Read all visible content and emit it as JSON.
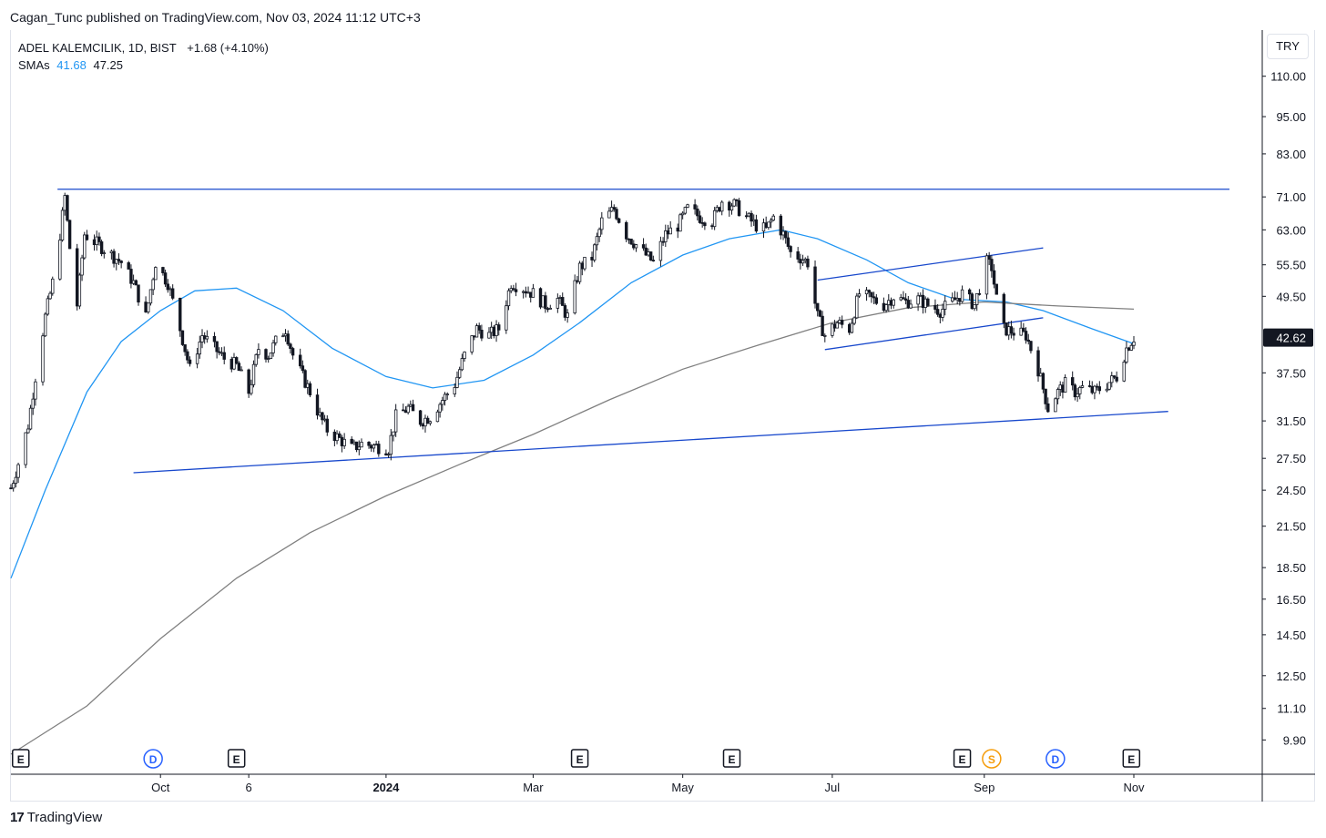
{
  "publish_line": "Cagan_Tunc published on TradingView.com, Nov 03, 2024 11:12 UTC+3",
  "legend": {
    "symbol": "ADEL KALEMCILIK, 1D, BIST",
    "change": "+1.68 (+4.10%)",
    "sma_label": "SMAs",
    "sma_fast": "41.68",
    "sma_slow": "47.25"
  },
  "currency": "TRY",
  "brand": {
    "logo": "17",
    "name": "TradingView"
  },
  "colors": {
    "sma_fast": "#2196f3",
    "sma_slow": "#808080",
    "trendline": "#1848cc",
    "candle": "#131722",
    "event_E": "#131722",
    "event_D": "#2962ff",
    "event_S": "#f59d0c"
  },
  "chart_data": {
    "type": "candlestick",
    "title": "ADEL KALEMCILIK, 1D, BIST",
    "y_scale": "log",
    "ylim": [
      8.8,
      125
    ],
    "last_price": "42.62",
    "y_ticks": [
      "110.00",
      "95.00",
      "83.00",
      "71.00",
      "63.00",
      "55.50",
      "49.50",
      "42.62",
      "37.50",
      "31.50",
      "27.50",
      "24.50",
      "21.50",
      "18.50",
      "16.50",
      "14.50",
      "12.50",
      "11.10",
      "9.90"
    ],
    "x_ticks": [
      {
        "label": "Oct",
        "date": "2023-10-01"
      },
      {
        "label": "6",
        "date": "2023-11-06"
      },
      {
        "label": "2024",
        "date": "2024-01-01"
      },
      {
        "label": "Mar",
        "date": "2024-03-01"
      },
      {
        "label": "May",
        "date": "2024-05-01"
      },
      {
        "label": "Jul",
        "date": "2024-07-01"
      },
      {
        "label": "Sep",
        "date": "2024-09-01"
      },
      {
        "label": "Nov",
        "date": "2024-11-01"
      }
    ],
    "price_path": [
      [
        "2023-08-01",
        24.7
      ],
      [
        "2023-08-04",
        27.0
      ],
      [
        "2023-08-08",
        31.0
      ],
      [
        "2023-08-11",
        37.0
      ],
      [
        "2023-08-15",
        46.0
      ],
      [
        "2023-08-18",
        52.0
      ],
      [
        "2023-08-21",
        62.0
      ],
      [
        "2023-08-23",
        71.0
      ],
      [
        "2023-08-25",
        59.0
      ],
      [
        "2023-08-28",
        48.0
      ],
      [
        "2023-08-31",
        62.0
      ],
      [
        "2023-09-05",
        60.0
      ],
      [
        "2023-09-10",
        58.0
      ],
      [
        "2023-09-15",
        56.0
      ],
      [
        "2023-09-20",
        52.0
      ],
      [
        "2023-09-25",
        46.0
      ],
      [
        "2023-09-29",
        56.0
      ],
      [
        "2023-10-04",
        52.0
      ],
      [
        "2023-10-09",
        44.0
      ],
      [
        "2023-10-13",
        38.0
      ],
      [
        "2023-10-18",
        43.0
      ],
      [
        "2023-10-23",
        41.0
      ],
      [
        "2023-10-27",
        39.5
      ],
      [
        "2023-11-01",
        38.5
      ],
      [
        "2023-11-06",
        35.0
      ],
      [
        "2023-11-10",
        41.0
      ],
      [
        "2023-11-14",
        40.0
      ],
      [
        "2023-11-17",
        42.0
      ],
      [
        "2023-11-21",
        44.0
      ],
      [
        "2023-11-24",
        40.0
      ],
      [
        "2023-11-28",
        37.0
      ],
      [
        "2023-12-01",
        35.0
      ],
      [
        "2023-12-05",
        32.0
      ],
      [
        "2023-12-08",
        30.5
      ],
      [
        "2023-12-13",
        29.5
      ],
      [
        "2023-12-18",
        28.5
      ],
      [
        "2023-12-22",
        29.0
      ],
      [
        "2024-01-02",
        28.5
      ],
      [
        "2024-01-05",
        32.0
      ],
      [
        "2024-01-10",
        33.0
      ],
      [
        "2024-01-15",
        31.5
      ],
      [
        "2024-01-19",
        32.0
      ],
      [
        "2024-01-24",
        34.0
      ],
      [
        "2024-01-29",
        36.0
      ],
      [
        "2024-02-02",
        40.0
      ],
      [
        "2024-02-07",
        44.0
      ],
      [
        "2024-02-12",
        43.0
      ],
      [
        "2024-02-16",
        44.0
      ],
      [
        "2024-02-21",
        52.0
      ],
      [
        "2024-02-26",
        51.0
      ],
      [
        "2024-03-01",
        50.0
      ],
      [
        "2024-03-06",
        48.0
      ],
      [
        "2024-03-11",
        49.0
      ],
      [
        "2024-03-15",
        46.0
      ],
      [
        "2024-03-20",
        55.0
      ],
      [
        "2024-03-25",
        57.0
      ],
      [
        "2024-03-29",
        65.0
      ],
      [
        "2024-04-03",
        68.0
      ],
      [
        "2024-04-08",
        62.0
      ],
      [
        "2024-04-15",
        58.0
      ],
      [
        "2024-04-19",
        56.0
      ],
      [
        "2024-04-24",
        62.0
      ],
      [
        "2024-04-29",
        64.0
      ],
      [
        "2024-05-03",
        68.0
      ],
      [
        "2024-05-08",
        66.0
      ],
      [
        "2024-05-13",
        65.0
      ],
      [
        "2024-05-17",
        70.0
      ],
      [
        "2024-05-22",
        69.0
      ],
      [
        "2024-05-27",
        66.0
      ],
      [
        "2024-05-31",
        64.0
      ],
      [
        "2024-06-04",
        63.0
      ],
      [
        "2024-06-07",
        66.0
      ],
      [
        "2024-06-11",
        62.0
      ],
      [
        "2024-06-14",
        58.0
      ],
      [
        "2024-06-18",
        57.0
      ],
      [
        "2024-06-21",
        56.0
      ],
      [
        "2024-06-25",
        46.0
      ],
      [
        "2024-06-28",
        43.0
      ],
      [
        "2024-07-03",
        45.0
      ],
      [
        "2024-07-08",
        44.0
      ],
      [
        "2024-07-12",
        50.0
      ],
      [
        "2024-07-17",
        49.0
      ],
      [
        "2024-07-22",
        48.0
      ],
      [
        "2024-07-26",
        49.5
      ],
      [
        "2024-07-31",
        48.5
      ],
      [
        "2024-08-05",
        49.0
      ],
      [
        "2024-08-09",
        48.0
      ],
      [
        "2024-08-14",
        47.0
      ],
      [
        "2024-08-19",
        48.5
      ],
      [
        "2024-08-23",
        50.0
      ],
      [
        "2024-08-28",
        48.0
      ],
      [
        "2024-09-02",
        56.0
      ],
      [
        "2024-09-04",
        55.0
      ],
      [
        "2024-09-06",
        49.0
      ],
      [
        "2024-09-09",
        44.0
      ],
      [
        "2024-09-13",
        43.5
      ],
      [
        "2024-09-18",
        43.0
      ],
      [
        "2024-09-23",
        38.0
      ],
      [
        "2024-09-27",
        33.0
      ],
      [
        "2024-10-01",
        35.0
      ],
      [
        "2024-10-04",
        36.0
      ],
      [
        "2024-10-08",
        35.0
      ],
      [
        "2024-10-11",
        35.5
      ],
      [
        "2024-10-16",
        35.0
      ],
      [
        "2024-10-21",
        36.0
      ],
      [
        "2024-10-25",
        37.0
      ],
      [
        "2024-10-29",
        41.0
      ],
      [
        "2024-11-01",
        42.62
      ]
    ],
    "series": [
      {
        "name": "SMAs",
        "last_value": "41.68",
        "points": [
          [
            "2023-08-01",
            17.8
          ],
          [
            "2023-08-15",
            24.5
          ],
          [
            "2023-09-01",
            35.0
          ],
          [
            "2023-09-15",
            42.0
          ],
          [
            "2023-10-01",
            47.0
          ],
          [
            "2023-10-15",
            50.5
          ],
          [
            "2023-11-01",
            51.0
          ],
          [
            "2023-11-20",
            47.0
          ],
          [
            "2023-12-10",
            41.0
          ],
          [
            "2024-01-01",
            37.0
          ],
          [
            "2024-01-20",
            35.5
          ],
          [
            "2024-02-10",
            36.5
          ],
          [
            "2024-03-01",
            40.0
          ],
          [
            "2024-03-20",
            45.0
          ],
          [
            "2024-04-10",
            52.0
          ],
          [
            "2024-05-01",
            57.5
          ],
          [
            "2024-05-20",
            61.0
          ],
          [
            "2024-06-10",
            63.0
          ],
          [
            "2024-06-25",
            61.0
          ],
          [
            "2024-07-15",
            56.5
          ],
          [
            "2024-08-01",
            52.0
          ],
          [
            "2024-08-20",
            49.0
          ],
          [
            "2024-09-10",
            48.5
          ],
          [
            "2024-09-25",
            47.0
          ],
          [
            "2024-10-15",
            44.0
          ],
          [
            "2024-11-01",
            41.68
          ]
        ]
      },
      {
        "name": "SMAs",
        "last_value": "47.25",
        "points": [
          [
            "2023-08-01",
            9.4
          ],
          [
            "2023-09-01",
            11.2
          ],
          [
            "2023-10-01",
            14.3
          ],
          [
            "2023-11-01",
            17.8
          ],
          [
            "2023-12-01",
            21.0
          ],
          [
            "2024-01-01",
            24.0
          ],
          [
            "2024-02-01",
            27.0
          ],
          [
            "2024-03-01",
            30.0
          ],
          [
            "2024-04-01",
            34.0
          ],
          [
            "2024-05-01",
            38.0
          ],
          [
            "2024-06-01",
            41.5
          ],
          [
            "2024-07-01",
            45.0
          ],
          [
            "2024-08-01",
            47.5
          ],
          [
            "2024-09-01",
            48.5
          ],
          [
            "2024-10-01",
            47.8
          ],
          [
            "2024-11-01",
            47.25
          ]
        ]
      }
    ],
    "trendlines": [
      {
        "from": [
          "2023-08-20",
          73.0
        ],
        "to": [
          "2024-12-10",
          73.0
        ]
      },
      {
        "from": [
          "2023-09-20",
          26.1
        ],
        "to": [
          "2024-11-15",
          32.6
        ]
      },
      {
        "from": [
          "2024-06-25",
          52.5
        ],
        "to": [
          "2024-09-25",
          59.0
        ]
      },
      {
        "from": [
          "2024-06-28",
          40.8
        ],
        "to": [
          "2024-09-25",
          45.8
        ]
      }
    ],
    "events": [
      {
        "type": "E",
        "date": "2023-08-05"
      },
      {
        "type": "D",
        "date": "2023-09-28"
      },
      {
        "type": "E",
        "date": "2023-11-01"
      },
      {
        "type": "E",
        "date": "2024-03-20"
      },
      {
        "type": "E",
        "date": "2024-05-21"
      },
      {
        "type": "E",
        "date": "2024-08-23"
      },
      {
        "type": "S",
        "date": "2024-09-04"
      },
      {
        "type": "D",
        "date": "2024-09-30"
      },
      {
        "type": "E",
        "date": "2024-10-31"
      }
    ]
  }
}
